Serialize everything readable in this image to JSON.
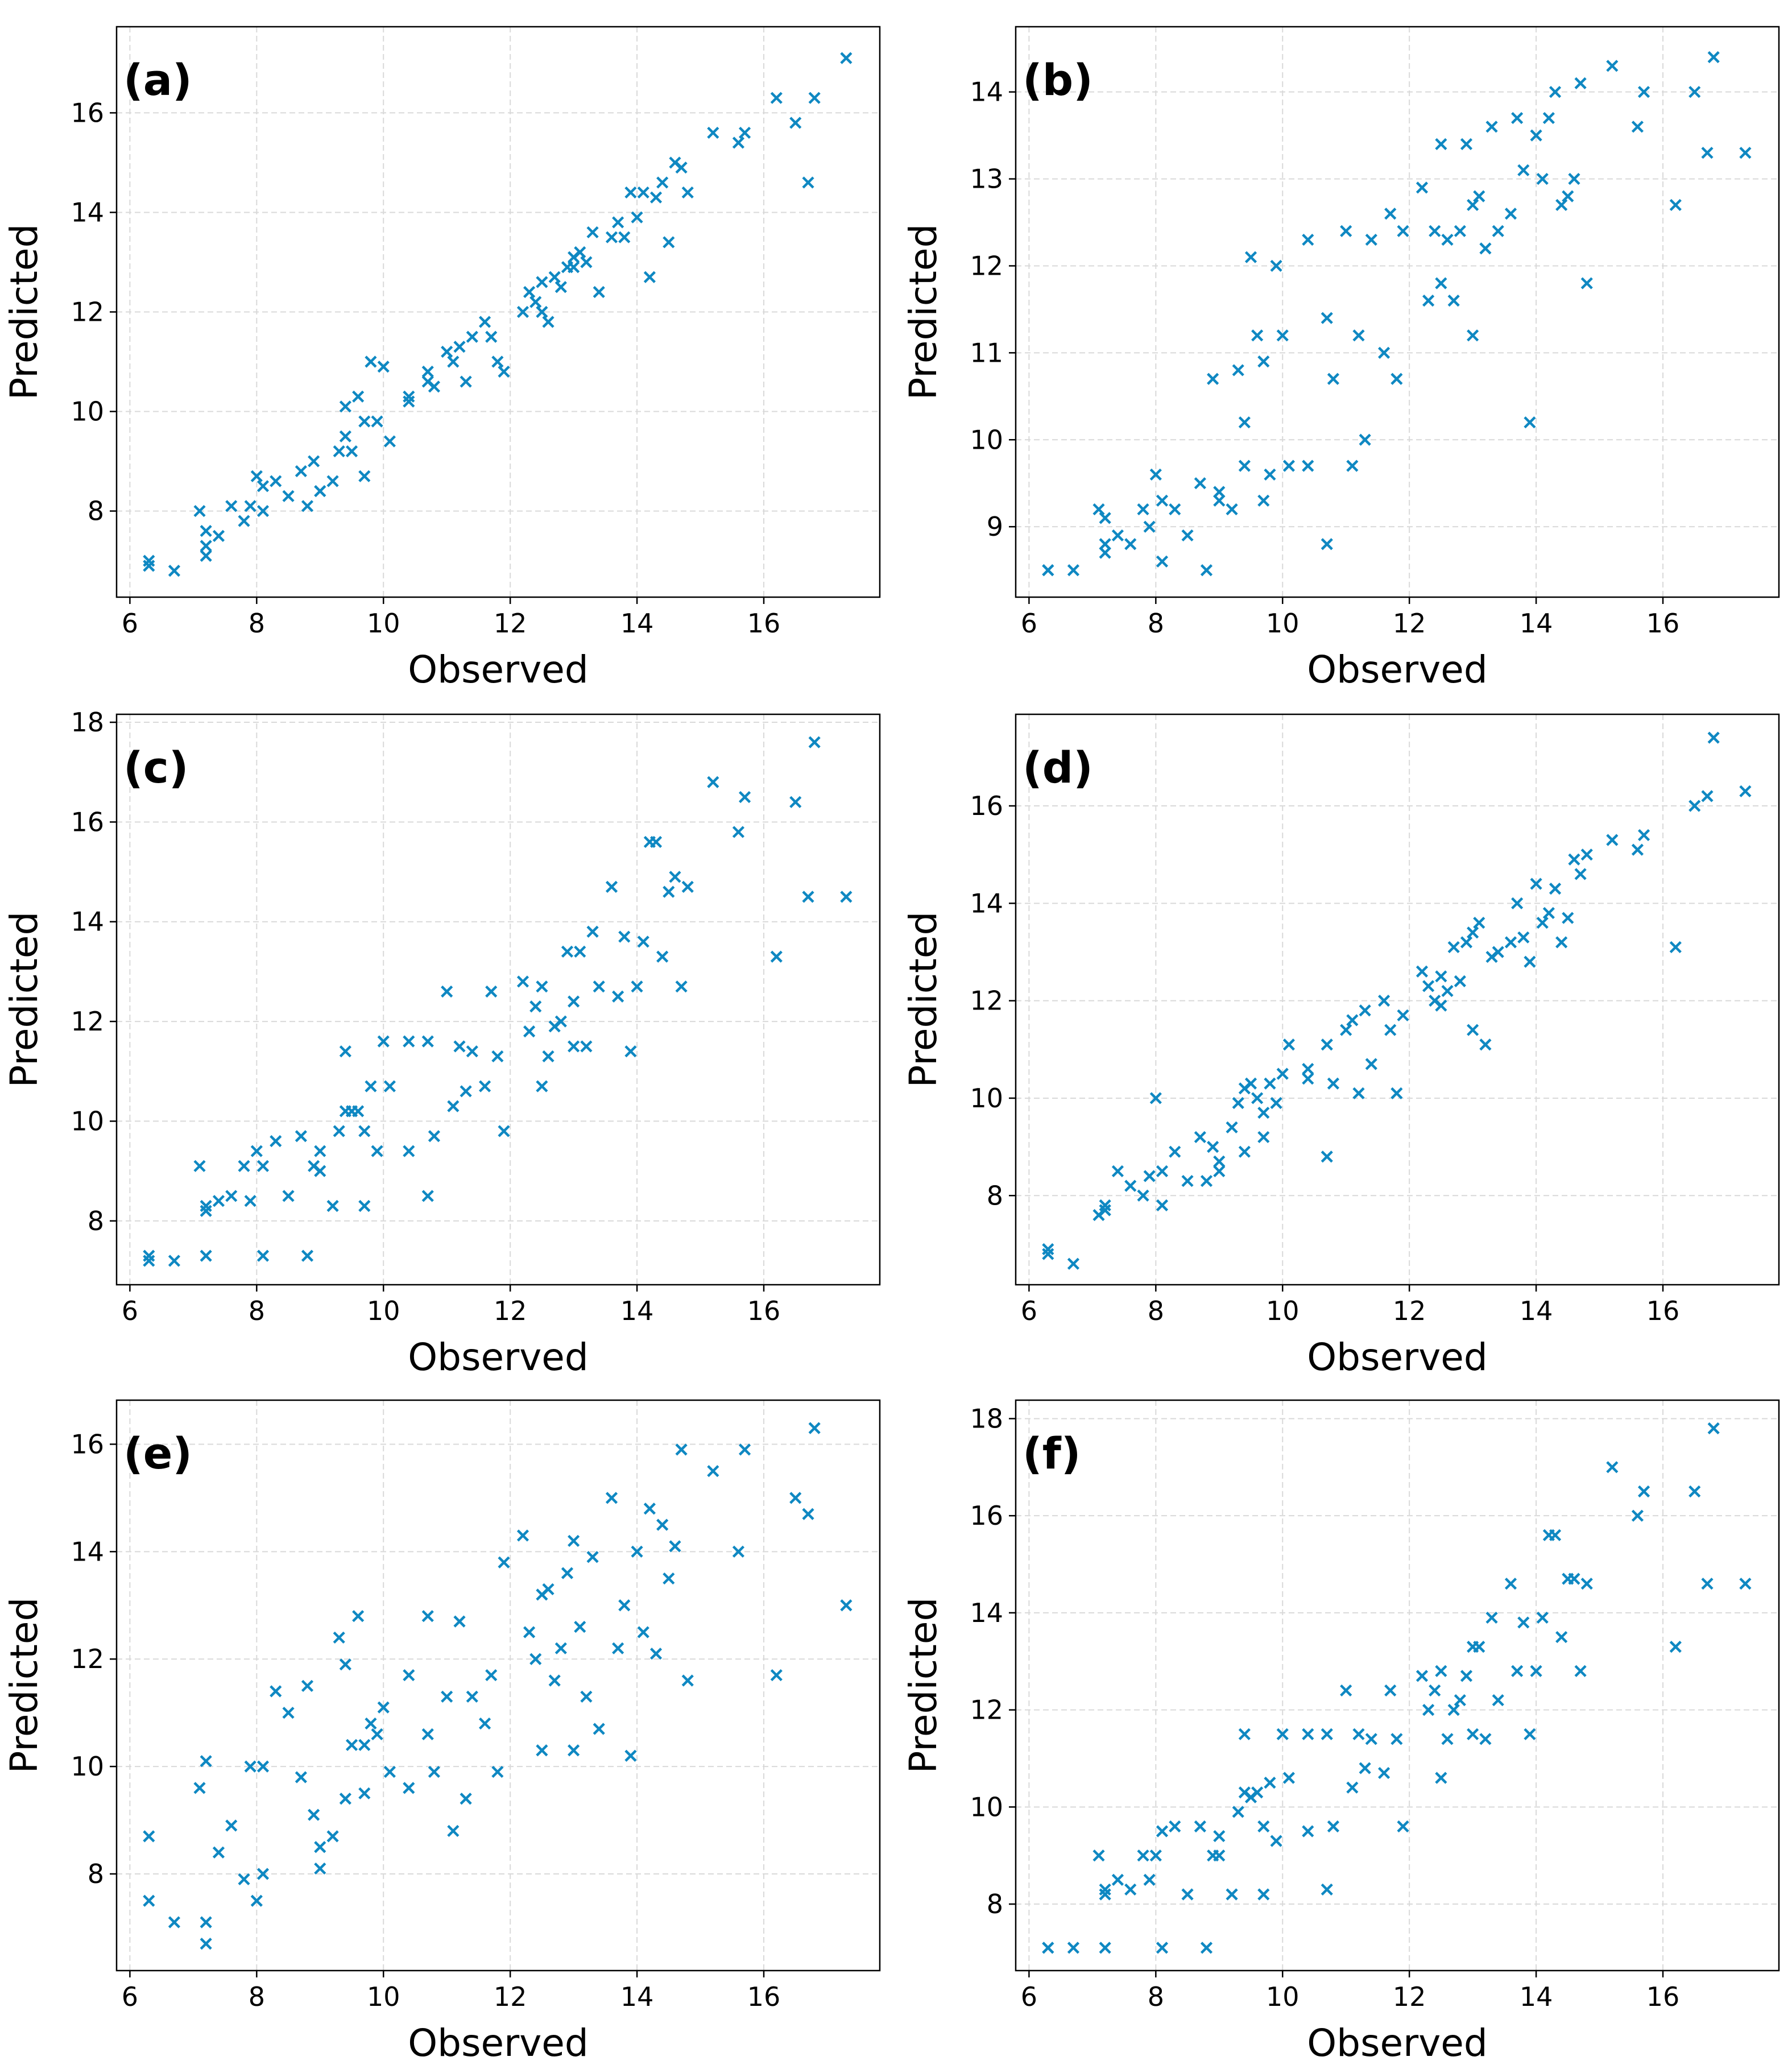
{
  "chart_data": {
    "type": "scatter",
    "marker": "x",
    "color": "#0f88c2",
    "grid": true,
    "xlabel": "Observed",
    "ylabel": "Predicted",
    "observed": [
      6.3,
      6.3,
      6.7,
      7.1,
      7.2,
      7.2,
      7.2,
      7.4,
      7.6,
      7.8,
      7.9,
      8.0,
      8.1,
      8.1,
      8.3,
      8.5,
      8.7,
      8.8,
      8.9,
      9.0,
      9.0,
      9.2,
      9.3,
      9.4,
      9.4,
      9.5,
      9.6,
      9.7,
      9.7,
      9.8,
      9.9,
      10.0,
      10.1,
      10.4,
      10.4,
      10.7,
      10.7,
      10.8,
      11.0,
      11.1,
      11.2,
      11.3,
      11.4,
      11.6,
      11.7,
      11.8,
      11.9,
      12.2,
      12.3,
      12.4,
      12.5,
      12.5,
      12.6,
      12.7,
      12.8,
      12.9,
      13.0,
      13.0,
      13.1,
      13.2,
      13.3,
      13.4,
      13.6,
      13.7,
      13.8,
      13.9,
      14.0,
      14.1,
      14.2,
      14.3,
      14.4,
      14.5,
      14.6,
      14.7,
      14.8,
      15.2,
      15.6,
      15.7,
      16.2,
      16.5,
      16.7,
      16.8,
      17.3
    ],
    "panels": [
      {
        "label": "(a)",
        "xlim": [
          5.79,
          17.83
        ],
        "ylim": [
          6.27,
          17.73
        ],
        "xticks": [
          6,
          8,
          10,
          12,
          14,
          16
        ],
        "yticks": [
          8,
          10,
          12,
          14,
          16
        ],
        "predicted": [
          6.9,
          7.0,
          6.8,
          8.0,
          7.3,
          7.1,
          7.6,
          7.5,
          8.1,
          7.8,
          8.1,
          8.7,
          8.0,
          8.5,
          8.6,
          8.3,
          8.8,
          8.1,
          9.0,
          8.4,
          8.4,
          8.6,
          9.2,
          9.5,
          10.1,
          9.2,
          10.3,
          8.7,
          9.8,
          11.0,
          9.8,
          10.9,
          9.4,
          10.3,
          10.2,
          10.6,
          10.8,
          10.5,
          11.2,
          11.0,
          11.3,
          10.6,
          11.5,
          11.8,
          11.5,
          11.0,
          10.8,
          12.0,
          12.4,
          12.2,
          12.6,
          12.0,
          11.8,
          12.7,
          12.5,
          12.9,
          13.1,
          12.9,
          13.2,
          13.0,
          13.6,
          12.4,
          13.5,
          13.8,
          13.5,
          14.4,
          13.9,
          14.4,
          12.7,
          14.3,
          14.6,
          13.4,
          15.0,
          14.9,
          14.4,
          15.6,
          15.4,
          15.6,
          16.3,
          15.8,
          14.6,
          16.3,
          17.1
        ]
      },
      {
        "label": "(b)",
        "xlim": [
          5.79,
          17.83
        ],
        "ylim": [
          8.19,
          14.75
        ],
        "xticks": [
          6,
          8,
          10,
          12,
          14,
          16
        ],
        "yticks": [
          9,
          10,
          11,
          12,
          13,
          14
        ],
        "predicted": [
          8.5,
          8.5,
          8.5,
          9.2,
          8.8,
          9.1,
          8.7,
          8.9,
          8.8,
          9.2,
          9.0,
          9.6,
          8.6,
          9.3,
          9.2,
          8.9,
          9.5,
          8.5,
          10.7,
          9.4,
          9.3,
          9.2,
          10.8,
          9.7,
          10.2,
          12.1,
          11.2,
          9.3,
          10.9,
          9.6,
          12.0,
          11.2,
          9.7,
          12.3,
          9.7,
          11.4,
          8.8,
          10.7,
          12.4,
          9.7,
          11.2,
          10.0,
          12.3,
          11.0,
          12.6,
          10.7,
          12.4,
          12.9,
          11.6,
          12.4,
          11.8,
          13.4,
          12.3,
          11.6,
          12.4,
          13.4,
          12.7,
          11.2,
          12.8,
          12.2,
          13.6,
          12.4,
          12.6,
          13.7,
          13.1,
          10.2,
          13.5,
          13.0,
          13.7,
          14.0,
          12.7,
          12.8,
          13.0,
          14.1,
          11.8,
          14.3,
          13.6,
          14.0,
          12.7,
          14.0,
          13.3,
          14.4,
          13.3
        ]
      },
      {
        "label": "(c)",
        "xlim": [
          5.79,
          17.83
        ],
        "ylim": [
          6.72,
          18.16
        ],
        "xticks": [
          6,
          8,
          10,
          12,
          14,
          16
        ],
        "yticks": [
          8,
          10,
          12,
          14,
          16,
          18
        ],
        "predicted": [
          7.3,
          7.2,
          7.2,
          9.1,
          7.3,
          8.3,
          8.2,
          8.4,
          8.5,
          9.1,
          8.4,
          9.4,
          7.3,
          9.1,
          9.6,
          8.5,
          9.7,
          7.3,
          9.1,
          9.4,
          9.0,
          8.3,
          9.8,
          11.4,
          10.2,
          10.2,
          10.2,
          8.3,
          9.8,
          10.7,
          9.4,
          11.6,
          10.7,
          11.6,
          9.4,
          11.6,
          8.5,
          9.7,
          12.6,
          10.3,
          11.5,
          10.6,
          11.4,
          10.7,
          12.6,
          11.3,
          9.8,
          12.8,
          11.8,
          12.3,
          10.7,
          12.7,
          11.3,
          11.9,
          12.0,
          13.4,
          12.4,
          11.5,
          13.4,
          11.5,
          13.8,
          12.7,
          14.7,
          12.5,
          13.7,
          11.4,
          12.7,
          13.6,
          15.6,
          15.6,
          13.3,
          14.6,
          14.9,
          12.7,
          14.7,
          16.8,
          15.8,
          16.5,
          13.3,
          16.4,
          14.5,
          17.6,
          14.5
        ]
      },
      {
        "label": "(d)",
        "xlim": [
          5.79,
          17.83
        ],
        "ylim": [
          6.17,
          17.88
        ],
        "xticks": [
          6,
          8,
          10,
          12,
          14,
          16
        ],
        "yticks": [
          8,
          10,
          12,
          14,
          16
        ],
        "predicted": [
          6.8,
          6.9,
          6.6,
          7.6,
          7.7,
          7.7,
          7.8,
          8.5,
          8.2,
          8.0,
          8.4,
          10.0,
          7.8,
          8.5,
          8.9,
          8.3,
          9.2,
          8.3,
          9.0,
          8.7,
          8.5,
          9.4,
          9.9,
          10.2,
          8.9,
          10.3,
          10.0,
          9.2,
          9.7,
          10.3,
          9.9,
          10.5,
          11.1,
          10.6,
          10.4,
          11.1,
          8.8,
          10.3,
          11.4,
          11.6,
          10.1,
          11.8,
          10.7,
          12.0,
          11.4,
          10.1,
          11.7,
          12.6,
          12.3,
          12.0,
          12.5,
          11.9,
          12.2,
          13.1,
          12.4,
          13.2,
          13.4,
          11.4,
          13.6,
          11.1,
          12.9,
          13.0,
          13.2,
          14.0,
          13.3,
          12.8,
          14.4,
          13.6,
          13.8,
          14.3,
          13.2,
          13.7,
          14.9,
          14.6,
          15.0,
          15.3,
          15.1,
          15.4,
          13.1,
          16.0,
          16.2,
          17.4,
          16.3
        ]
      },
      {
        "label": "(e)",
        "xlim": [
          5.79,
          17.83
        ],
        "ylim": [
          6.2,
          16.82
        ],
        "xticks": [
          6,
          8,
          10,
          12,
          14,
          16
        ],
        "yticks": [
          8,
          10,
          12,
          14,
          16
        ],
        "predicted": [
          8.7,
          7.5,
          7.1,
          9.6,
          10.1,
          6.7,
          7.1,
          8.4,
          8.9,
          7.9,
          10.0,
          7.5,
          10.0,
          8.0,
          11.4,
          11.0,
          9.8,
          11.5,
          9.1,
          8.1,
          8.5,
          8.7,
          12.4,
          11.9,
          9.4,
          10.4,
          12.8,
          9.5,
          10.4,
          10.8,
          10.6,
          11.1,
          9.9,
          11.7,
          9.6,
          12.8,
          10.6,
          9.9,
          11.3,
          8.8,
          12.7,
          9.4,
          11.3,
          10.8,
          11.7,
          9.9,
          13.8,
          14.3,
          12.5,
          12.0,
          13.2,
          10.3,
          13.3,
          11.6,
          12.2,
          13.6,
          14.2,
          10.3,
          12.6,
          11.3,
          13.9,
          10.7,
          15.0,
          12.2,
          13.0,
          10.2,
          14.0,
          12.5,
          14.8,
          12.1,
          14.5,
          13.5,
          14.1,
          15.9,
          11.6,
          15.5,
          14.0,
          15.9,
          11.7,
          15.0,
          14.7,
          16.3,
          13.0
        ]
      },
      {
        "label": "(f)",
        "xlim": [
          5.79,
          17.83
        ],
        "ylim": [
          6.63,
          18.38
        ],
        "xticks": [
          6,
          8,
          10,
          12,
          14,
          16
        ],
        "yticks": [
          8,
          10,
          12,
          14,
          16,
          18
        ],
        "predicted": [
          7.1,
          7.1,
          7.1,
          9.0,
          8.2,
          8.3,
          7.1,
          8.5,
          8.3,
          9.0,
          8.5,
          9.0,
          7.1,
          9.5,
          9.6,
          8.2,
          9.6,
          7.1,
          9.0,
          9.4,
          9.0,
          8.2,
          9.9,
          11.5,
          10.3,
          10.2,
          10.3,
          8.2,
          9.6,
          10.5,
          9.3,
          11.5,
          10.6,
          11.5,
          9.5,
          11.5,
          8.3,
          9.6,
          12.4,
          10.4,
          11.5,
          10.8,
          11.4,
          10.7,
          12.4,
          11.4,
          9.6,
          12.7,
          12.0,
          12.4,
          10.6,
          12.8,
          11.4,
          12.0,
          12.2,
          12.7,
          13.3,
          11.5,
          13.3,
          11.4,
          13.9,
          12.2,
          14.6,
          12.8,
          13.8,
          11.5,
          12.8,
          13.9,
          15.6,
          15.6,
          13.5,
          14.7,
          14.7,
          12.8,
          14.6,
          17.0,
          16.0,
          16.5,
          13.3,
          16.5,
          14.6,
          17.8,
          14.6
        ]
      }
    ]
  }
}
